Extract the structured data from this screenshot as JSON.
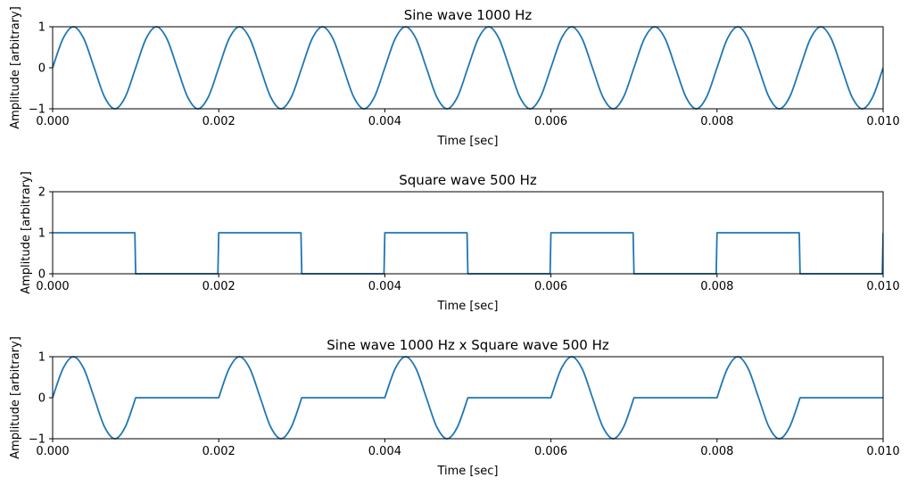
{
  "chart_data": [
    {
      "type": "line",
      "title": "Sine wave 1000 Hz",
      "xlabel": "Time [sec]",
      "ylabel": "Amplitude [arbitrary]",
      "xlim": [
        0,
        0.01
      ],
      "ylim": [
        -1,
        1
      ],
      "xticks": [
        "0.000",
        "0.002",
        "0.004",
        "0.006",
        "0.008",
        "0.010"
      ],
      "yticks": [
        "−1",
        "0",
        "1"
      ],
      "grid": false,
      "series": [
        {
          "color": "#1f77b4",
          "x": [
            0,
            0.000125,
            0.00025,
            0.000375,
            0.0005,
            0.000625,
            0.00075,
            0.000875,
            0.001,
            0.001125,
            0.00125,
            0.001375,
            0.0015,
            0.001625,
            0.00175,
            0.001875,
            0.002,
            0.002125,
            0.00225,
            0.002375,
            0.0025,
            0.002625,
            0.00275,
            0.002875,
            0.003,
            0.003125,
            0.00325,
            0.003375,
            0.0035,
            0.003625,
            0.00375,
            0.003875,
            0.004,
            0.004125,
            0.00425,
            0.004375,
            0.0045,
            0.004625,
            0.00475,
            0.004875,
            0.005,
            0.005125,
            0.00525,
            0.005375,
            0.0055,
            0.005625,
            0.00575,
            0.005875,
            0.006,
            0.006125,
            0.00625,
            0.006375,
            0.0065,
            0.006625,
            0.00675,
            0.006875,
            0.007,
            0.007125,
            0.00725,
            0.007375,
            0.0075,
            0.007625,
            0.00775,
            0.007875,
            0.008,
            0.008125,
            0.00825,
            0.008375,
            0.0085,
            0.008625,
            0.00875,
            0.008875,
            0.009,
            0.009125,
            0.00925,
            0.009375,
            0.0095,
            0.009625,
            0.00975,
            0.009875,
            0.01
          ],
          "y": [
            0,
            0.71,
            1,
            0.71,
            0,
            -0.71,
            -1,
            -0.71,
            0,
            0.71,
            1,
            0.71,
            0,
            -0.71,
            -1,
            -0.71,
            0,
            0.71,
            1,
            0.71,
            0,
            -0.71,
            -1,
            -0.71,
            0,
            0.71,
            1,
            0.71,
            0,
            -0.71,
            -1,
            -0.71,
            0,
            0.71,
            1,
            0.71,
            0,
            -0.71,
            -1,
            -0.71,
            0,
            0.71,
            1,
            0.71,
            0,
            -0.71,
            -1,
            -0.71,
            0,
            0.71,
            1,
            0.71,
            0,
            -0.71,
            -1,
            -0.71,
            0,
            0.71,
            1,
            0.71,
            0,
            -0.71,
            -1,
            -0.71,
            0,
            0.71,
            1,
            0.71,
            0,
            -0.71,
            -1,
            -0.71,
            0,
            0.71,
            1,
            0.71,
            0,
            -0.71,
            -1,
            -0.71,
            0
          ]
        }
      ]
    },
    {
      "type": "line",
      "title": "Square wave 500 Hz",
      "xlabel": "Time [sec]",
      "ylabel": "Amplitude [arbitrary]",
      "xlim": [
        0,
        0.01
      ],
      "ylim": [
        0,
        2
      ],
      "xticks": [
        "0.000",
        "0.002",
        "0.004",
        "0.006",
        "0.008",
        "0.010"
      ],
      "yticks": [
        "0",
        "1",
        "2"
      ],
      "grid": false,
      "series": [
        {
          "color": "#1f77b4",
          "x": [
            0,
            0.00099,
            0.001,
            0.00199,
            0.002,
            0.00299,
            0.003,
            0.00399,
            0.004,
            0.00499,
            0.005,
            0.00599,
            0.006,
            0.00699,
            0.007,
            0.00799,
            0.008,
            0.00899,
            0.009,
            0.00999,
            0.01
          ],
          "y": [
            1,
            1,
            0,
            0,
            1,
            1,
            0,
            0,
            1,
            1,
            0,
            0,
            1,
            1,
            0,
            0,
            1,
            1,
            0,
            0,
            1
          ]
        }
      ]
    },
    {
      "type": "line",
      "title": "Sine wave 1000 Hz x Square wave 500 Hz",
      "xlabel": "Time [sec]",
      "ylabel": "Amplitude [arbitrary]",
      "xlim": [
        0,
        0.01
      ],
      "ylim": [
        -1,
        1
      ],
      "xticks": [
        "0.000",
        "0.002",
        "0.004",
        "0.006",
        "0.008",
        "0.010"
      ],
      "yticks": [
        "−1",
        "0",
        "1"
      ],
      "grid": false,
      "series": [
        {
          "color": "#1f77b4",
          "x": [
            0,
            0.000125,
            0.00025,
            0.000375,
            0.0005,
            0.000625,
            0.00075,
            0.000875,
            0.001,
            0.002,
            0.002125,
            0.00225,
            0.002375,
            0.0025,
            0.002625,
            0.00275,
            0.002875,
            0.003,
            0.004,
            0.004125,
            0.00425,
            0.004375,
            0.0045,
            0.004625,
            0.00475,
            0.004875,
            0.005,
            0.006,
            0.006125,
            0.00625,
            0.006375,
            0.0065,
            0.006625,
            0.00675,
            0.006875,
            0.007,
            0.008,
            0.008125,
            0.00825,
            0.008375,
            0.0085,
            0.008625,
            0.00875,
            0.008875,
            0.009,
            0.01
          ],
          "y": [
            0,
            0.71,
            1,
            0.71,
            0,
            -0.71,
            -1,
            -0.71,
            0,
            0,
            0.71,
            1,
            0.71,
            0,
            -0.71,
            -1,
            -0.71,
            0,
            0,
            0.71,
            1,
            0.71,
            0,
            -0.71,
            -1,
            -0.71,
            0,
            0,
            0.71,
            1,
            0.71,
            0,
            -0.71,
            -1,
            -0.71,
            0,
            0,
            0.71,
            1,
            0.71,
            0,
            -0.71,
            -1,
            -0.71,
            0,
            0
          ]
        }
      ]
    }
  ]
}
